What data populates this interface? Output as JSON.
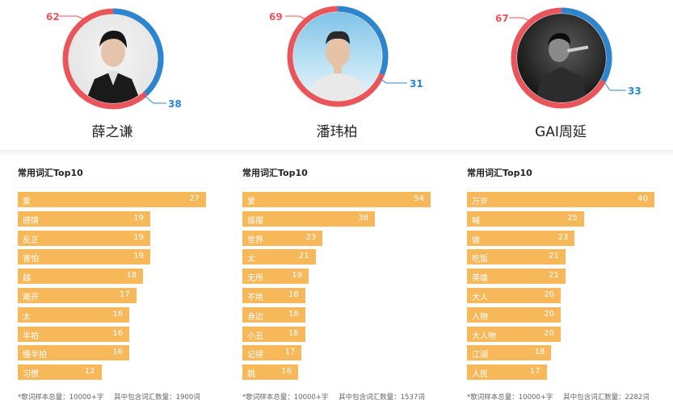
{
  "artists": [
    {
      "name": "薛之谦",
      "left_value": "62",
      "right_value": "38",
      "photo_style": "dark-suit-portrait"
    },
    {
      "name": "潘玮柏",
      "left_value": "69",
      "right_value": "31",
      "photo_style": "sky-background-portrait"
    },
    {
      "name": "GAI周延",
      "left_value": "67",
      "right_value": "33",
      "photo_style": "stage-performance-bw"
    }
  ],
  "colors": {
    "ring_red": "#e8555a",
    "ring_blue": "#2b86cf",
    "bar": "#f7b85a"
  },
  "chart_data": [
    {
      "type": "bar",
      "title": "常用词汇Top10",
      "categories": [
        "爱",
        "感情",
        "反正",
        "害怕",
        "越",
        "离开",
        "太",
        "半拍",
        "慢半拍",
        "习惯"
      ],
      "values": [
        27,
        19,
        19,
        19,
        18,
        17,
        16,
        16,
        16,
        12
      ],
      "footer": [
        "*歌词样本总量：10000+字",
        "其中包含词汇数量：1900词"
      ]
    },
    {
      "type": "bar",
      "title": "常用词汇Top10",
      "categories": [
        "爱",
        "摇摆",
        "世界",
        "太",
        "无所",
        "不用",
        "身边",
        "小丑",
        "记得",
        "跳"
      ],
      "values": [
        54,
        38,
        23,
        21,
        19,
        18,
        18,
        18,
        17,
        16
      ],
      "footer": [
        "*歌词样本总量：10000+字",
        "其中包含词汇数量：1537词"
      ]
    },
    {
      "type": "bar",
      "title": "常用词汇Top10",
      "categories": [
        "万岁",
        "喊",
        "做",
        "吃饭",
        "英雄",
        "大人",
        "人物",
        "大人物",
        "江湖",
        "人民"
      ],
      "values": [
        40,
        25,
        23,
        21,
        21,
        20,
        20,
        20,
        18,
        17
      ],
      "footer": [
        "*歌词样本总量：10000+字",
        "其中包含词汇数量：2282词"
      ]
    }
  ]
}
